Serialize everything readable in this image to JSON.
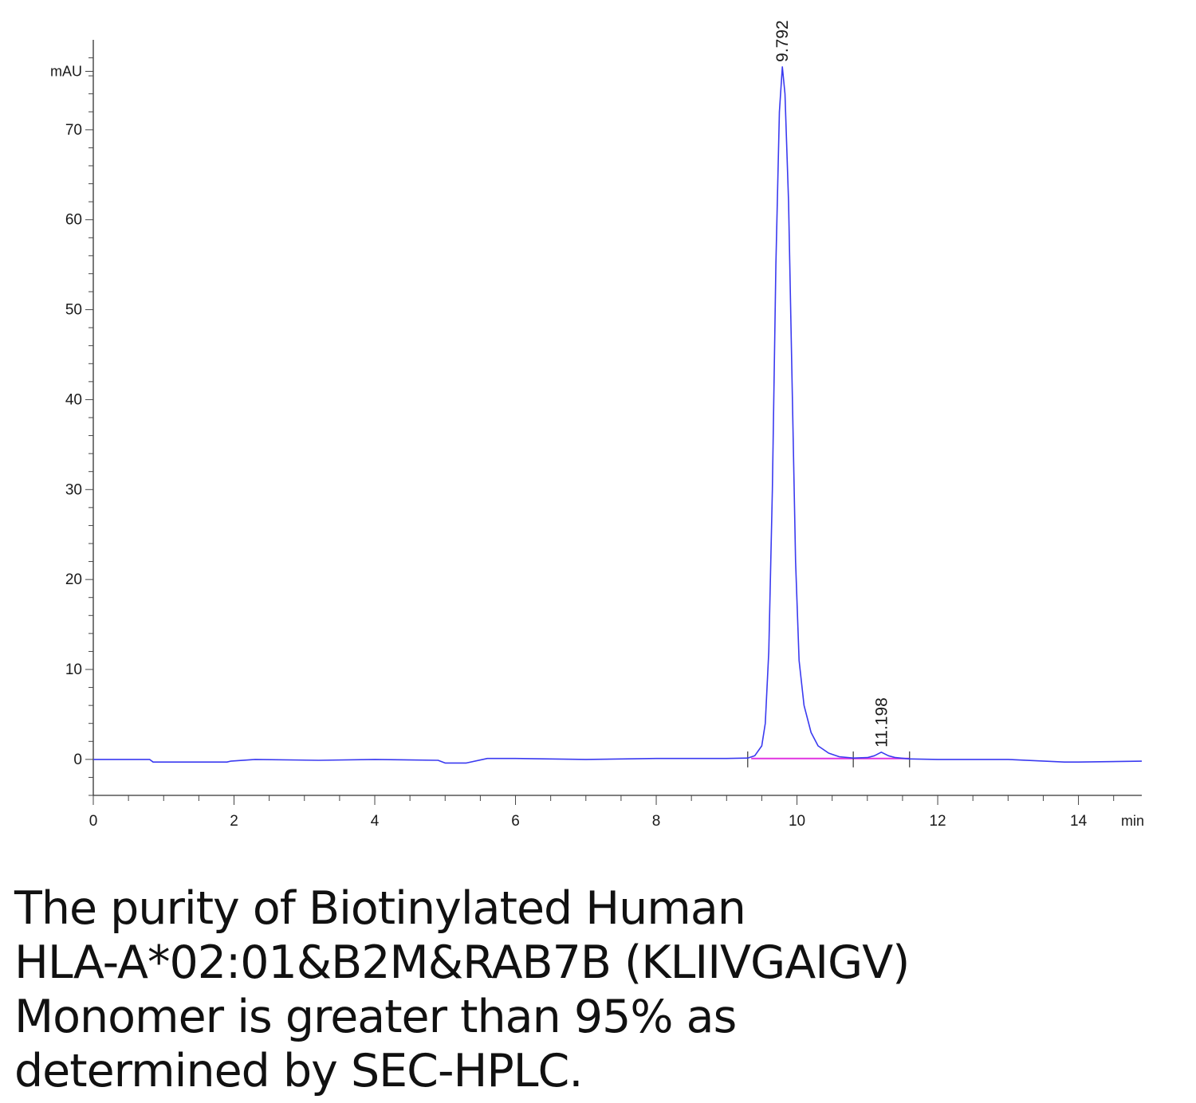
{
  "chart_data": {
    "type": "line",
    "x_unit": "min",
    "y_unit": "mAU",
    "xlim": [
      0,
      14.9
    ],
    "ylim": [
      -4,
      80
    ],
    "x_ticks": [
      "0",
      "2",
      "4",
      "6",
      "8",
      "10",
      "12",
      "14"
    ],
    "y_ticks": [
      "0",
      "10",
      "20",
      "30",
      "40",
      "50",
      "60",
      "70"
    ],
    "grid": false,
    "series": [
      {
        "color": "#3a3af0",
        "x": [
          0,
          0.8,
          0.85,
          1.9,
          1.95,
          2.3,
          3.2,
          4.0,
          4.9,
          5.0,
          5.3,
          5.6,
          6.0,
          7.0,
          8.0,
          9.0,
          9.3,
          9.4,
          9.5,
          9.55,
          9.6,
          9.65,
          9.7,
          9.75,
          9.792,
          9.83,
          9.88,
          9.93,
          9.98,
          10.03,
          10.1,
          10.2,
          10.3,
          10.45,
          10.6,
          10.8,
          11.0,
          11.1,
          11.198,
          11.3,
          11.4,
          11.6,
          12.0,
          13.0,
          13.8,
          14.0,
          14.9
        ],
        "y": [
          0,
          0,
          -0.3,
          -0.3,
          -0.2,
          0,
          -0.1,
          0,
          -0.1,
          -0.4,
          -0.4,
          0.1,
          0.1,
          0,
          0.1,
          0.1,
          0.15,
          0.4,
          1.5,
          4,
          12,
          30,
          55,
          72,
          77,
          74,
          62,
          42,
          22,
          11,
          6,
          3,
          1.5,
          0.7,
          0.3,
          0.15,
          0.2,
          0.4,
          0.8,
          0.4,
          0.2,
          0.05,
          0,
          0,
          -0.3,
          -0.3,
          -0.2
        ]
      }
    ],
    "baselines": [
      {
        "color": "#e033e0",
        "x": [
          9.35,
          10.8
        ],
        "y": [
          0.1,
          0.1
        ]
      },
      {
        "color": "#e033e0",
        "x": [
          10.8,
          11.6
        ],
        "y": [
          0.1,
          0.1
        ]
      }
    ],
    "peak_labels": [
      {
        "text": "9.792",
        "x": 9.792,
        "y": 77
      },
      {
        "text": "11.198",
        "x": 11.198,
        "y": 0.8
      }
    ],
    "integration_marks": [
      9.3,
      10.8,
      11.6
    ]
  },
  "caption": {
    "line1": "The purity of Biotinylated Human",
    "line2": "HLA-A*02:01&B2M&RAB7B (KLIIVGAIGV)",
    "line3": "Monomer is greater than 95% as",
    "line4": "determined by SEC-HPLC."
  }
}
